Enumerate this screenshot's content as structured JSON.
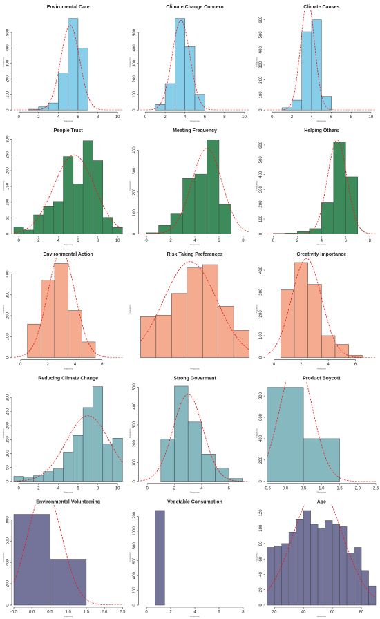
{
  "chart_data": [
    {
      "type": "histogram",
      "title": "Enviromental Care",
      "xlabel": "Response",
      "ylabel": "Frequency",
      "color": "#87ceeb",
      "bins": [
        1,
        2,
        3,
        4,
        5,
        6,
        7
      ],
      "counts": [
        5,
        20,
        45,
        240,
        590,
        400
      ],
      "xlim": [
        -0.5,
        10.5
      ],
      "xticks": [
        0,
        2,
        4,
        6,
        8,
        10
      ],
      "ylim": [
        0,
        620
      ],
      "yticks": [
        0,
        100,
        200,
        300,
        400,
        500
      ],
      "curve": {
        "mean": 5.2,
        "sd": 0.95,
        "color": "#e31a1c"
      }
    },
    {
      "type": "histogram",
      "title": "Climate Change Concern",
      "xlabel": "Response",
      "ylabel": "Frequency",
      "color": "#87ceeb",
      "bins": [
        1,
        2,
        3,
        4,
        5,
        6
      ],
      "counts": [
        35,
        170,
        590,
        410,
        100
      ],
      "xlim": [
        -0.5,
        10.5
      ],
      "xticks": [
        0,
        2,
        4,
        6,
        8,
        10
      ],
      "ylim": [
        0,
        620
      ],
      "yticks": [
        0,
        100,
        200,
        300,
        400,
        500
      ],
      "curve": {
        "mean": 3.6,
        "sd": 0.9,
        "color": "#e31a1c"
      }
    },
    {
      "type": "histogram",
      "title": "Climate Causes",
      "xlabel": "Response",
      "ylabel": "Frequency",
      "color": "#87ceeb",
      "bins": [
        1,
        2,
        3,
        4,
        5,
        6
      ],
      "counts": [
        15,
        65,
        520,
        600,
        90
      ],
      "xlim": [
        -0.5,
        10.5
      ],
      "xticks": [
        0,
        2,
        4,
        6,
        8,
        10
      ],
      "ylim": [
        0,
        640
      ],
      "yticks": [
        0,
        100,
        200,
        300,
        400,
        500,
        600
      ],
      "curve": {
        "mean": 3.6,
        "sd": 0.7,
        "color": "#e31a1c"
      }
    },
    {
      "type": "histogram",
      "title": "People Trust",
      "xlabel": "Response",
      "ylabel": "Frequency",
      "color": "#3d8b5a",
      "bins": [
        -0.5,
        0.5,
        1.5,
        2.5,
        3.5,
        4.5,
        5.5,
        6.5,
        7.5,
        8.5,
        9.5,
        10.5
      ],
      "counts": [
        22,
        12,
        60,
        88,
        102,
        245,
        158,
        295,
        232,
        52,
        20
      ],
      "xlim": [
        -0.5,
        10.5
      ],
      "xticks": [
        0,
        2,
        4,
        6,
        8,
        10
      ],
      "ylim": [
        0,
        305
      ],
      "yticks": [
        0,
        50,
        100,
        150,
        200,
        250,
        300
      ],
      "curve": {
        "mean": 5.6,
        "sd": 2.05,
        "color": "#e31a1c"
      }
    },
    {
      "type": "histogram",
      "title": "Meeting Frequency",
      "xlabel": "Response",
      "ylabel": "Frequency",
      "color": "#3d8b5a",
      "bins": [
        0,
        1,
        2,
        3,
        4,
        5,
        6,
        7
      ],
      "counts": [
        5,
        40,
        95,
        265,
        285,
        450,
        140
      ],
      "xlim": [
        -0.5,
        8.5
      ],
      "xticks": [
        0,
        2,
        4,
        6,
        8
      ],
      "ylim": [
        0,
        460
      ],
      "yticks": [
        0,
        100,
        200,
        300,
        400
      ],
      "curve": {
        "mean": 5.0,
        "sd": 1.25,
        "color": "#e31a1c"
      }
    },
    {
      "type": "histogram",
      "title": "Helping Others",
      "xlabel": "Response",
      "ylabel": "Frequency",
      "color": "#3d8b5a",
      "bins": [
        0,
        1,
        2,
        3,
        4,
        5,
        6,
        7
      ],
      "counts": [
        3,
        5,
        15,
        35,
        210,
        620,
        385
      ],
      "xlim": [
        -0.5,
        8.5
      ],
      "xticks": [
        0,
        2,
        4,
        6,
        8
      ],
      "ylim": [
        0,
        650
      ],
      "yticks": [
        0,
        100,
        200,
        300,
        400,
        500,
        600
      ],
      "curve": {
        "mean": 5.3,
        "sd": 0.8,
        "color": "#e31a1c"
      }
    },
    {
      "type": "histogram",
      "title": "Environmental Action",
      "xlabel": "Response",
      "ylabel": "Frequency",
      "color": "#f4ab90",
      "bins": [
        0.5,
        1.5,
        2.5,
        3.5,
        4.5,
        5.5
      ],
      "counts": [
        160,
        370,
        450,
        225,
        75
      ],
      "xlim": [
        -0.5,
        7.5
      ],
      "xticks": [
        0,
        2,
        4,
        6
      ],
      "ylim": [
        0,
        460
      ],
      "yticks": [
        0,
        100,
        200,
        300,
        400
      ],
      "curve": {
        "mean": 3.0,
        "sd": 1.0,
        "color": "#e31a1c"
      }
    },
    {
      "type": "histogram",
      "title": "Risk Taking Preferences",
      "xlabel": "Response",
      "ylabel": "Frequency",
      "color": "#f4ab90",
      "bins": [
        0,
        1,
        2,
        3,
        4,
        5,
        6,
        7
      ],
      "counts": [
        128,
        132,
        200,
        280,
        290,
        160,
        85
      ],
      "xlim": [
        0,
        7
      ],
      "xticks": [],
      "ylim": [
        0,
        300
      ],
      "yticks": [],
      "curve": {
        "mean": 3.2,
        "sd": 1.7,
        "color": "#e31a1c"
      }
    },
    {
      "type": "histogram",
      "title": "Creativity Importance",
      "xlabel": "Response",
      "ylabel": "Frequency",
      "color": "#f4ab90",
      "bins": [
        0.5,
        1.5,
        2.5,
        3.5,
        4.5,
        5.5,
        6.5
      ],
      "counts": [
        310,
        435,
        335,
        100,
        60,
        10
      ],
      "xlim": [
        -0.5,
        7.5
      ],
      "xticks": [
        0,
        2,
        4,
        6
      ],
      "ylim": [
        0,
        440
      ],
      "yticks": [
        0,
        100,
        200,
        300,
        400
      ],
      "curve": {
        "mean": 2.4,
        "sd": 1.1,
        "color": "#e31a1c"
      }
    },
    {
      "type": "histogram",
      "title": "Reducing Climate Change",
      "xlabel": "Response",
      "ylabel": "Frequency",
      "color": "#86b8c0",
      "bins": [
        -0.5,
        0.5,
        1.5,
        2.5,
        3.5,
        4.5,
        5.5,
        6.5,
        7.5,
        8.5,
        9.5,
        10.5
      ],
      "counts": [
        18,
        15,
        22,
        35,
        45,
        105,
        165,
        265,
        340,
        135,
        155
      ],
      "xlim": [
        -0.5,
        10.5
      ],
      "xticks": [
        0,
        2,
        4,
        6,
        8,
        10
      ],
      "ylim": [
        0,
        345
      ],
      "yticks": [
        0,
        50,
        100,
        150,
        200,
        250,
        300
      ],
      "curve": {
        "mean": 7.0,
        "sd": 2.2,
        "color": "#e31a1c"
      }
    },
    {
      "type": "histogram",
      "title": "Strong Goverment",
      "xlabel": "Response",
      "ylabel": "Frequency",
      "color": "#86b8c0",
      "bins": [
        1,
        2,
        3,
        4,
        5,
        6,
        7
      ],
      "counts": [
        225,
        505,
        315,
        145,
        70,
        15
      ],
      "xlim": [
        -0.5,
        7.5
      ],
      "xticks": [
        0,
        2,
        4,
        6
      ],
      "ylim": [
        0,
        510
      ],
      "yticks": [
        0,
        100,
        200,
        300,
        400,
        500
      ],
      "curve": {
        "mean": 3.0,
        "sd": 1.1,
        "color": "#e31a1c"
      }
    },
    {
      "type": "histogram",
      "title": "Product Boycott",
      "xlabel": "Response",
      "ylabel": "Frequency",
      "color": "#86b8c0",
      "bins": [
        -0.5,
        0.5,
        1.5
      ],
      "counts": [
        880,
        400
      ],
      "xlim": [
        -0.5,
        2.5
      ],
      "xticks": [
        -0.5,
        {
          "value": 0,
          "label": "0.0"
        },
        0.5,
        {
          "value": 1,
          "label": "1.0"
        },
        1.5,
        {
          "value": 2,
          "label": "2.0"
        },
        2.5
      ],
      "ylim": [
        0,
        900
      ],
      "yticks": [
        0,
        200,
        400,
        600,
        800
      ],
      "curve": {
        "mean": 0.3,
        "sd": 0.45,
        "color": "#e31a1c"
      }
    },
    {
      "type": "histogram",
      "title": "Environmental Volunteering",
      "xlabel": "Response",
      "ylabel": "Frequency",
      "color": "#74749a",
      "bins": [
        -0.5,
        0.5,
        1.5
      ],
      "counts": [
        850,
        430
      ],
      "xlim": [
        -0.5,
        2.5
      ],
      "xticks": [
        -0.5,
        {
          "value": 0,
          "label": "0.0"
        },
        0.5,
        {
          "value": 1,
          "label": "1.0"
        },
        1.5,
        {
          "value": 2,
          "label": "2.0"
        },
        2.5
      ],
      "ylim": [
        0,
        900
      ],
      "yticks": [
        0,
        200,
        400,
        600,
        800
      ],
      "curve": {
        "mean": 0.35,
        "sd": 0.47,
        "color": "#e31a1c"
      }
    },
    {
      "type": "histogram",
      "title": "Vegetable Consumption",
      "xlabel": "Response",
      "ylabel": "Frequency",
      "color": "#74749a",
      "bins": [
        0.7,
        1.5
      ],
      "counts": [
        1280
      ],
      "xlim": [
        -0.5,
        8.5
      ],
      "xticks": [
        0,
        2,
        4,
        6,
        8
      ],
      "ylim": [
        0,
        1300
      ],
      "yticks": [
        0,
        200,
        400,
        600,
        800,
        1000,
        1200
      ]
    },
    {
      "type": "histogram",
      "title": "Age",
      "xlabel": "Response",
      "ylabel": "Frequency",
      "color": "#74749a",
      "bins": [
        15,
        20,
        25,
        30,
        35,
        40,
        45,
        50,
        55,
        60,
        65,
        70,
        75,
        80,
        85,
        90
      ],
      "counts": [
        75,
        77,
        80,
        95,
        112,
        123,
        105,
        100,
        110,
        105,
        102,
        68,
        75,
        45,
        25
      ],
      "xlim": [
        15,
        90
      ],
      "xticks": [
        20,
        40,
        60,
        80
      ],
      "ylim": [
        0,
        125
      ],
      "yticks": [
        0,
        20,
        40,
        60,
        80,
        100,
        120
      ],
      "curve": {
        "mean": 50,
        "sd": 17,
        "color": "#e31a1c"
      }
    }
  ]
}
